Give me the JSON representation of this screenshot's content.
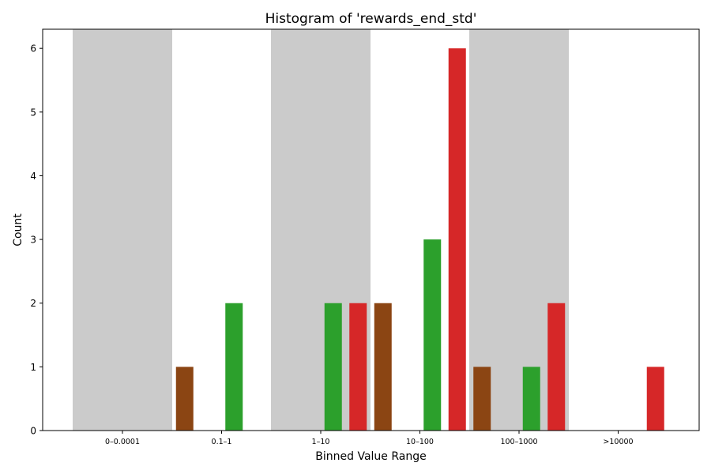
{
  "chart_data": {
    "type": "bar",
    "title": "Histogram of 'rewards_end_std'",
    "xlabel": "Binned Value Range",
    "ylabel": "Count",
    "categories": [
      "0–0.0001",
      "0.1–1",
      "1–10",
      "10–100",
      "100–1000",
      ">10000"
    ],
    "shaded_categories": [
      "0–0.0001",
      "1–10",
      "100–1000"
    ],
    "ylim": [
      0,
      6.3
    ],
    "yticks": [
      0,
      1,
      2,
      3,
      4,
      5,
      6
    ],
    "grid": false,
    "legend": "none",
    "series": [
      {
        "color": "#2ca02c",
        "values": [
          0,
          2,
          2,
          3,
          1,
          0
        ]
      },
      {
        "color": "#d62728",
        "values": [
          0,
          0,
          2,
          6,
          2,
          1
        ]
      },
      {
        "color": "#8b4513",
        "values": [
          1,
          0,
          2,
          1,
          0,
          0
        ]
      }
    ],
    "colors": {
      "shade": "#cbcbcb",
      "axis": "#000000"
    }
  }
}
